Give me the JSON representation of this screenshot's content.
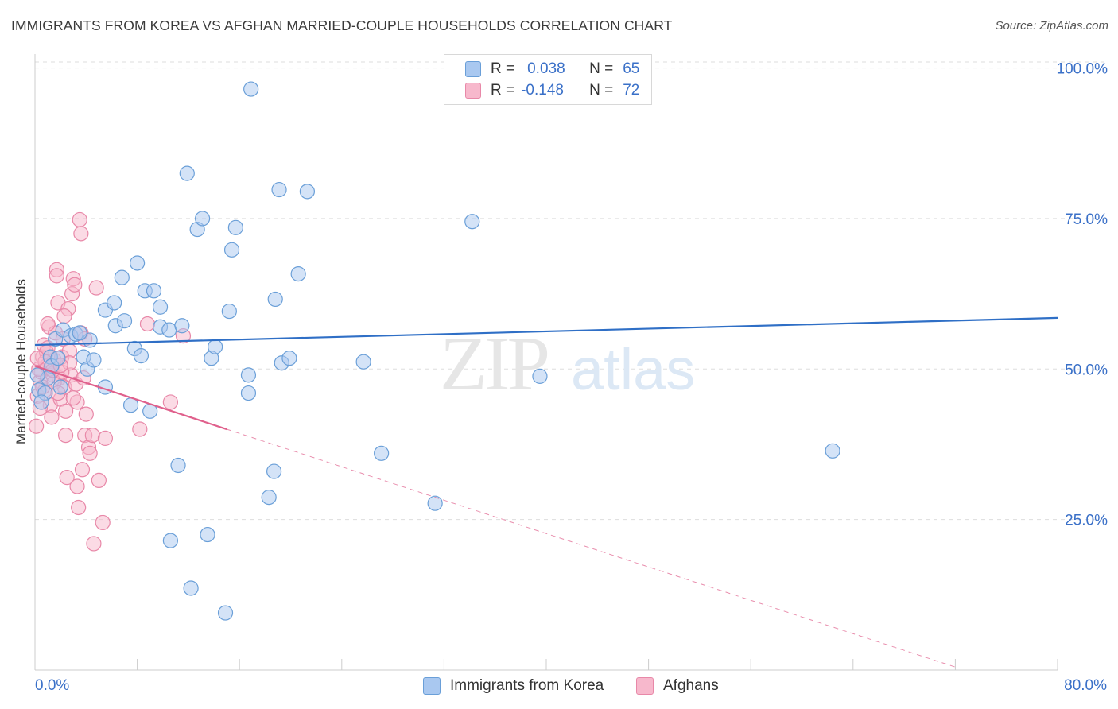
{
  "title": "IMMIGRANTS FROM KOREA VS AFGHAN MARRIED-COUPLE HOUSEHOLDS CORRELATION CHART",
  "source": "Source: ZipAtlas.com",
  "watermark": {
    "zip": "ZIP",
    "atlas": "atlas"
  },
  "legend": {
    "korea": {
      "r_label": "R =",
      "r_value": "0.038",
      "n_label": "N =",
      "n_value": "65"
    },
    "afghan": {
      "r_label": "R =",
      "r_value": "-0.148",
      "n_label": "N =",
      "n_value": "72"
    }
  },
  "colors": {
    "korea_fill": "#a9c8f0",
    "korea_stroke": "#6a9fd8",
    "korea_line": "#2f6fc6",
    "afghan_fill": "#f7b8cc",
    "afghan_stroke": "#e888a8",
    "afghan_line": "#e0608c",
    "axis_text": "#3a70c8",
    "grid": "#dddddd"
  },
  "chart_data": {
    "type": "scatter",
    "title": "IMMIGRANTS FROM KOREA VS AFGHAN MARRIED-COUPLE HOUSEHOLDS CORRELATION CHART",
    "xlabel": "",
    "ylabel": "Married-couple Households",
    "xlim": [
      0,
      80
    ],
    "ylim": [
      0,
      101
    ],
    "x_tick_labels": [
      "0.0%",
      "80.0%"
    ],
    "y_ticks": [
      25,
      50,
      75,
      100
    ],
    "y_tick_labels": [
      "25.0%",
      "50.0%",
      "75.0%",
      "100.0%"
    ],
    "series": [
      {
        "name": "Immigrants from Korea",
        "color": "korea",
        "trend": {
          "x": [
            0,
            80
          ],
          "y": [
            54.0,
            58.5
          ]
        },
        "points": [
          [
            0.3,
            46.5
          ],
          [
            0.8,
            46.0
          ],
          [
            1.2,
            52.0
          ],
          [
            1.3,
            50.5
          ],
          [
            1.6,
            55.0
          ],
          [
            2.2,
            56.5
          ],
          [
            2.8,
            55.5
          ],
          [
            3.2,
            55.8
          ],
          [
            3.8,
            52.0
          ],
          [
            4.1,
            50.0
          ],
          [
            4.3,
            54.8
          ],
          [
            5.5,
            47.0
          ],
          [
            5.5,
            59.8
          ],
          [
            6.2,
            61.0
          ],
          [
            6.3,
            57.2
          ],
          [
            6.8,
            65.2
          ],
          [
            7.0,
            58.0
          ],
          [
            7.5,
            44.0
          ],
          [
            7.8,
            53.4
          ],
          [
            8.0,
            67.6
          ],
          [
            8.3,
            52.2
          ],
          [
            8.6,
            63.0
          ],
          [
            9.0,
            43.0
          ],
          [
            9.3,
            63.0
          ],
          [
            9.8,
            60.3
          ],
          [
            9.8,
            57.0
          ],
          [
            10.5,
            56.5
          ],
          [
            10.6,
            21.5
          ],
          [
            11.2,
            34.0
          ],
          [
            11.5,
            57.2
          ],
          [
            11.9,
            82.5
          ],
          [
            12.2,
            13.6
          ],
          [
            12.7,
            73.2
          ],
          [
            13.1,
            75.0
          ],
          [
            13.5,
            22.5
          ],
          [
            13.8,
            51.8
          ],
          [
            14.1,
            53.7
          ],
          [
            14.9,
            9.5
          ],
          [
            15.2,
            59.6
          ],
          [
            15.4,
            69.8
          ],
          [
            15.7,
            73.5
          ],
          [
            16.7,
            49.0
          ],
          [
            16.7,
            46.0
          ],
          [
            16.9,
            96.5
          ],
          [
            18.3,
            28.7
          ],
          [
            18.7,
            33.0
          ],
          [
            18.8,
            61.6
          ],
          [
            19.1,
            79.8
          ],
          [
            19.3,
            51.0
          ],
          [
            19.9,
            51.8
          ],
          [
            20.6,
            65.8
          ],
          [
            21.3,
            79.5
          ],
          [
            25.7,
            51.2
          ],
          [
            27.1,
            36.0
          ],
          [
            31.3,
            27.7
          ],
          [
            34.2,
            74.5
          ],
          [
            39.5,
            48.8
          ],
          [
            62.4,
            36.4
          ],
          [
            0.5,
            44.5
          ],
          [
            1.0,
            48.5
          ],
          [
            2.0,
            47.0
          ],
          [
            3.5,
            56.0
          ],
          [
            4.6,
            51.5
          ],
          [
            0.2,
            49.0
          ],
          [
            1.8,
            51.8
          ]
        ]
      },
      {
        "name": "Afghans",
        "color": "afghan",
        "trend": {
          "x": [
            0,
            15
          ],
          "y": [
            50.5,
            40.0
          ]
        },
        "trend_extended": {
          "x": [
            15,
            72
          ],
          "y": [
            40.0,
            0.5
          ]
        },
        "points": [
          [
            0.1,
            40.5
          ],
          [
            0.2,
            45.5
          ],
          [
            0.4,
            48.0
          ],
          [
            0.5,
            49.5
          ],
          [
            0.6,
            52.0
          ],
          [
            0.7,
            54.0
          ],
          [
            0.8,
            46.5
          ],
          [
            0.9,
            50.5
          ],
          [
            1.0,
            53.5
          ],
          [
            1.1,
            57.0
          ],
          [
            1.2,
            44.0
          ],
          [
            1.3,
            42.0
          ],
          [
            1.4,
            49.0
          ],
          [
            1.5,
            51.5
          ],
          [
            1.6,
            56.0
          ],
          [
            1.7,
            66.5
          ],
          [
            1.7,
            65.5
          ],
          [
            1.8,
            61.0
          ],
          [
            1.9,
            48.5
          ],
          [
            2.0,
            45.0
          ],
          [
            2.1,
            52.0
          ],
          [
            2.2,
            55.0
          ],
          [
            2.3,
            47.0
          ],
          [
            2.4,
            43.0
          ],
          [
            2.4,
            39.0
          ],
          [
            2.5,
            32.0
          ],
          [
            2.6,
            60.0
          ],
          [
            2.7,
            53.0
          ],
          [
            2.8,
            49.0
          ],
          [
            2.9,
            62.5
          ],
          [
            3.0,
            65.0
          ],
          [
            3.1,
            64.0
          ],
          [
            3.2,
            47.5
          ],
          [
            3.3,
            44.5
          ],
          [
            3.3,
            30.5
          ],
          [
            3.4,
            27.0
          ],
          [
            3.5,
            74.8
          ],
          [
            3.6,
            72.5
          ],
          [
            3.7,
            33.3
          ],
          [
            3.8,
            48.5
          ],
          [
            3.9,
            39.0
          ],
          [
            4.0,
            42.5
          ],
          [
            4.2,
            37.0
          ],
          [
            4.3,
            36.0
          ],
          [
            4.5,
            39.0
          ],
          [
            4.6,
            21.0
          ],
          [
            4.8,
            63.5
          ],
          [
            5.0,
            31.5
          ],
          [
            5.3,
            24.5
          ],
          [
            5.5,
            38.5
          ],
          [
            8.2,
            40.0
          ],
          [
            8.8,
            57.5
          ],
          [
            10.6,
            44.5
          ],
          [
            11.6,
            55.5
          ],
          [
            0.3,
            50.0
          ],
          [
            0.6,
            47.0
          ],
          [
            0.9,
            52.8
          ],
          [
            1.2,
            50.0
          ],
          [
            1.5,
            47.8
          ],
          [
            1.8,
            46.0
          ],
          [
            2.1,
            49.5
          ],
          [
            2.7,
            51.0
          ],
          [
            3.0,
            45.2
          ],
          [
            3.6,
            56.0
          ],
          [
            0.4,
            43.5
          ],
          [
            1.0,
            57.5
          ],
          [
            2.3,
            58.8
          ],
          [
            3.9,
            55.0
          ],
          [
            0.8,
            51.2
          ],
          [
            1.4,
            49.8
          ],
          [
            2.0,
            50.6
          ],
          [
            0.2,
            51.8
          ]
        ]
      }
    ]
  },
  "bottom_legend": {
    "korea": "Immigrants from Korea",
    "afghan": "Afghans"
  }
}
